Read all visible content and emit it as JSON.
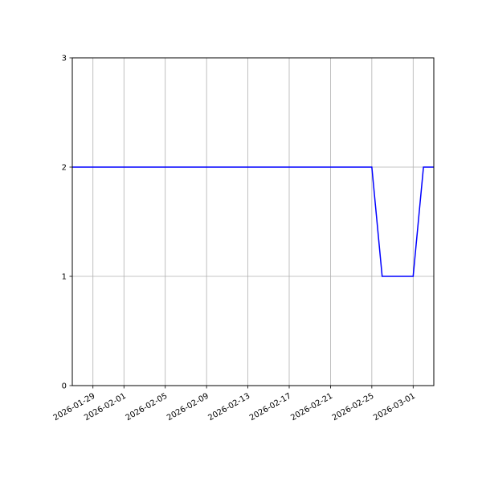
{
  "chart_data": {
    "type": "line",
    "title": "",
    "xlabel": "",
    "ylabel": "",
    "xlim": [
      "2026-01-27",
      "2026-03-03"
    ],
    "ylim": [
      0,
      3
    ],
    "grid": true,
    "x_ticks": [
      "2026-01-29",
      "2026-02-01",
      "2026-02-05",
      "2026-02-09",
      "2026-02-13",
      "2026-02-17",
      "2026-02-21",
      "2026-02-25",
      "2026-03-01"
    ],
    "y_ticks": [
      0,
      1,
      2,
      3
    ],
    "line_color": "#0000ff",
    "grid_color": "#b0b0b0",
    "series": [
      {
        "x": [
          "2026-01-27",
          "2026-01-28",
          "2026-01-29",
          "2026-01-30",
          "2026-01-31",
          "2026-02-01",
          "2026-02-02",
          "2026-02-03",
          "2026-02-04",
          "2026-02-05",
          "2026-02-06",
          "2026-02-07",
          "2026-02-08",
          "2026-02-09",
          "2026-02-10",
          "2026-02-11",
          "2026-02-12",
          "2026-02-13",
          "2026-02-14",
          "2026-02-15",
          "2026-02-16",
          "2026-02-17",
          "2026-02-18",
          "2026-02-19",
          "2026-02-20",
          "2026-02-21",
          "2026-02-22",
          "2026-02-23",
          "2026-02-24",
          "2026-02-25",
          "2026-02-26",
          "2026-02-27",
          "2026-02-28",
          "2026-03-01",
          "2026-03-02",
          "2026-03-03"
        ],
        "values": [
          2,
          2,
          2,
          2,
          2,
          2,
          2,
          2,
          2,
          2,
          2,
          2,
          2,
          2,
          2,
          2,
          2,
          2,
          2,
          2,
          2,
          2,
          2,
          2,
          2,
          2,
          2,
          2,
          2,
          2,
          1,
          1,
          1,
          1,
          2,
          2
        ]
      }
    ]
  }
}
